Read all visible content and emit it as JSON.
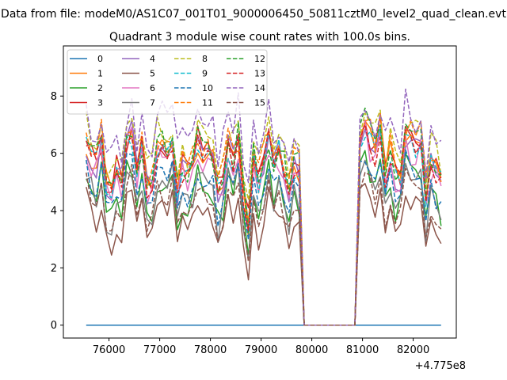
{
  "suptitle": "Data from file: modeM0/AS1C07_001T01_9000006450_50811cztM0_level2_quad_clean.evt",
  "chart_data": {
    "type": "line",
    "title": "Quadrant 3 module wise count rates with 100.0s bins.",
    "xlabel": "",
    "ylabel": "",
    "x_offset_label": "+4.775e8",
    "x_start": 75550,
    "x_step": 100,
    "x_count": 71,
    "xlim": [
      75100,
      82850
    ],
    "ylim": [
      -0.45,
      9.75
    ],
    "x_ticks": [
      76000,
      77000,
      78000,
      79000,
      80000,
      81000,
      82000
    ],
    "x_tick_labels": [
      "76000",
      "77000",
      "78000",
      "79000",
      "80000",
      "81000",
      "82000"
    ],
    "y_ticks": [
      0,
      2,
      4,
      6,
      8
    ],
    "y_tick_labels": [
      "0",
      "2",
      "4",
      "6",
      "8"
    ],
    "gap": {
      "from": 79850,
      "to": 80850
    },
    "legend_location": "upper left",
    "legend_columns": 4,
    "series": [
      {
        "name": "0",
        "color": "#1f77b4",
        "dash": "solid",
        "level": 0.0,
        "amp": 0.0
      },
      {
        "name": "1",
        "color": "#ff7f0e",
        "dash": "solid",
        "level": 5.7,
        "amp": 0.5
      },
      {
        "name": "2",
        "color": "#2ca02c",
        "dash": "solid",
        "level": 4.6,
        "amp": 0.5
      },
      {
        "name": "3",
        "color": "#d62728",
        "dash": "solid",
        "level": 5.8,
        "amp": 0.5
      },
      {
        "name": "4",
        "color": "#9467bd",
        "dash": "solid",
        "level": 5.6,
        "amp": 0.5
      },
      {
        "name": "5",
        "color": "#8c564b",
        "dash": "solid",
        "level": 3.7,
        "amp": 0.4
      },
      {
        "name": "6",
        "color": "#e377c2",
        "dash": "solid",
        "level": 5.4,
        "amp": 0.5
      },
      {
        "name": "7",
        "color": "#7f7f7f",
        "dash": "solid",
        "level": 4.5,
        "amp": 0.5
      },
      {
        "name": "8",
        "color": "#bcbd22",
        "dash": "dashed",
        "level": 6.3,
        "amp": 0.5
      },
      {
        "name": "9",
        "color": "#17becf",
        "dash": "dashed",
        "level": 5.6,
        "amp": 0.5
      },
      {
        "name": "10",
        "color": "#1f77b4",
        "dash": "dashed",
        "level": 4.8,
        "amp": 0.4
      },
      {
        "name": "11",
        "color": "#ff7f0e",
        "dash": "dashed",
        "level": 6.0,
        "amp": 0.5
      },
      {
        "name": "12",
        "color": "#2ca02c",
        "dash": "dashed",
        "level": 5.9,
        "amp": 0.5
      },
      {
        "name": "13",
        "color": "#d62728",
        "dash": "dashed",
        "level": 5.7,
        "amp": 0.5
      },
      {
        "name": "14",
        "color": "#9467bd",
        "dash": "dashed",
        "level": 6.8,
        "amp": 0.7
      },
      {
        "name": "15",
        "color": "#8c564b",
        "dash": "dashed",
        "level": 4.2,
        "amp": 0.4
      }
    ]
  }
}
